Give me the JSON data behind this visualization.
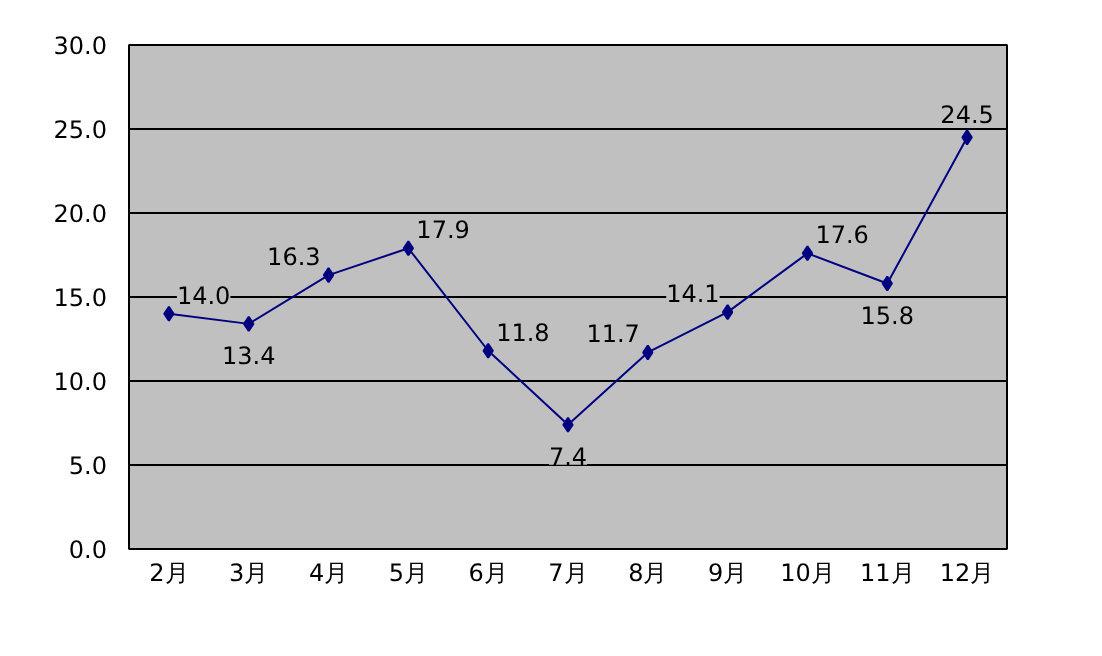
{
  "chart_data": {
    "type": "line",
    "categories": [
      "2月",
      "3月",
      "4月",
      "5月",
      "6月",
      "7月",
      "8月",
      "9月",
      "10月",
      "11月",
      "12月"
    ],
    "series": [
      {
        "color": "#000080",
        "values": [
          14.0,
          13.4,
          16.3,
          17.9,
          11.8,
          7.4,
          11.7,
          14.1,
          17.6,
          15.8,
          24.5
        ],
        "value_labels": [
          "14.0",
          "13.4",
          "16.3",
          "17.9",
          "11.8",
          "7.4",
          "11.7",
          "14.1",
          "17.6",
          "15.8",
          "24.5"
        ]
      }
    ],
    "ylim": [
      0,
      30
    ],
    "yticks": [
      {
        "value": 0,
        "label": "0.0"
      },
      {
        "value": 5,
        "label": "5.0"
      },
      {
        "value": 10,
        "label": "10.0"
      },
      {
        "value": 15,
        "label": "15.0"
      },
      {
        "value": 20,
        "label": "20.0"
      },
      {
        "value": 25,
        "label": "25.0"
      },
      {
        "value": 30,
        "label": "30.0"
      }
    ],
    "grid": "y",
    "marker": "diamond",
    "line_style": "solid"
  }
}
